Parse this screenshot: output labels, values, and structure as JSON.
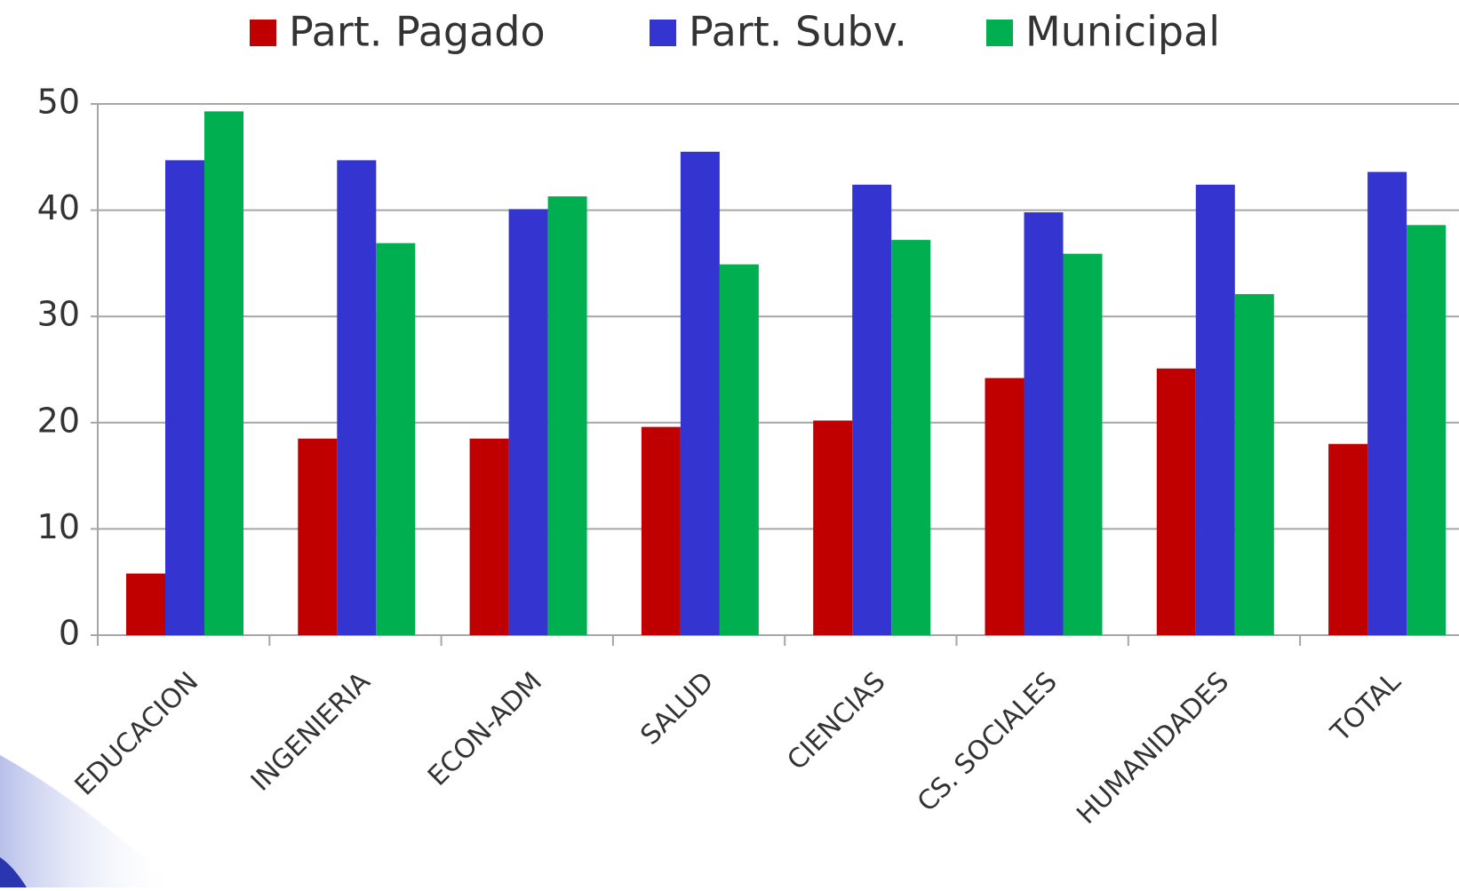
{
  "chart_data": {
    "type": "bar",
    "categories": [
      "EDUCACION",
      "INGENIERIA",
      "ECON-ADM",
      "SALUD",
      "CIENCIAS",
      "CS. SOCIALES",
      "HUMANIDADES",
      "TOTAL"
    ],
    "series": [
      {
        "name": "Part. Pagado",
        "color": "#c00000",
        "values": [
          5.8,
          18.5,
          18.5,
          19.6,
          20.2,
          24.2,
          25.1,
          18.0
        ]
      },
      {
        "name": "Part. Subv.",
        "color": "#3434d0",
        "values": [
          44.7,
          44.7,
          40.1,
          45.5,
          42.4,
          39.8,
          42.4,
          43.6
        ]
      },
      {
        "name": "Municipal",
        "color": "#00b050",
        "values": [
          49.3,
          36.9,
          41.3,
          34.9,
          37.2,
          35.9,
          32.1,
          38.6
        ]
      }
    ],
    "ylim": [
      0,
      50
    ],
    "yticks": [
      0,
      10,
      20,
      30,
      40,
      50
    ],
    "grid": true
  }
}
